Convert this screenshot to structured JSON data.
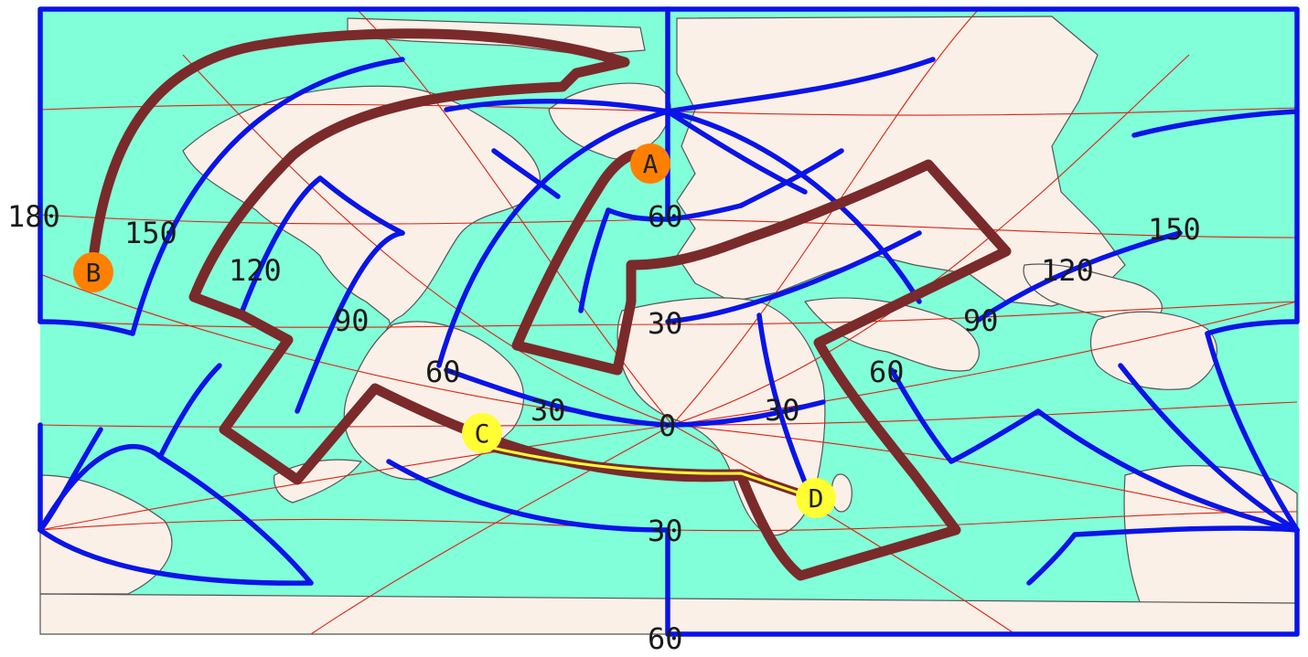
{
  "map": {
    "colors": {
      "ocean": "#80ffd8",
      "land": "#faf0e8",
      "graticule": "#e02010",
      "interrupt_lines": "#0a14e8",
      "route": "#7a2a2a",
      "path_cd": "#ffff33",
      "marker_orange": "#ff8000",
      "marker_yellow": "#ffff33"
    },
    "labels": {
      "lon_w180": "180",
      "lon_w150": "150",
      "lon_w120": "120",
      "lon_w90": "90",
      "lon_w60": "60",
      "lon_w30": "30",
      "lon_0": "0",
      "lon_e30": "30",
      "lon_e60": "60",
      "lon_e90": "90",
      "lon_e120": "120",
      "lon_e150": "150",
      "lat_n60": "60",
      "lat_n30": "30",
      "lat_s30": "30",
      "lat_s60": "60"
    },
    "markers": [
      {
        "id": "A",
        "label": "A",
        "color": "marker_orange"
      },
      {
        "id": "B",
        "label": "B",
        "color": "marker_orange"
      },
      {
        "id": "C",
        "label": "C",
        "color": "marker_yellow"
      },
      {
        "id": "D",
        "label": "D",
        "color": "marker_yellow"
      }
    ]
  }
}
